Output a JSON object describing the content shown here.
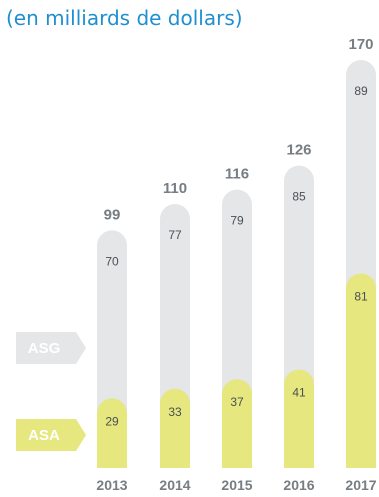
{
  "chart_data": {
    "type": "bar",
    "subtitle": "(en milliards de dollars)",
    "categories": [
      "2013",
      "2014",
      "2015",
      "2016",
      "2017"
    ],
    "series": [
      {
        "name": "ASA",
        "values": [
          29,
          33,
          37,
          41,
          81
        ],
        "color": "#e6e77f"
      },
      {
        "name": "ASG",
        "values": [
          70,
          77,
          79,
          85,
          89
        ],
        "color": "#e4e6e8"
      }
    ],
    "totals": [
      99,
      110,
      116,
      126,
      170
    ],
    "legend_position": "left",
    "grid": false
  }
}
